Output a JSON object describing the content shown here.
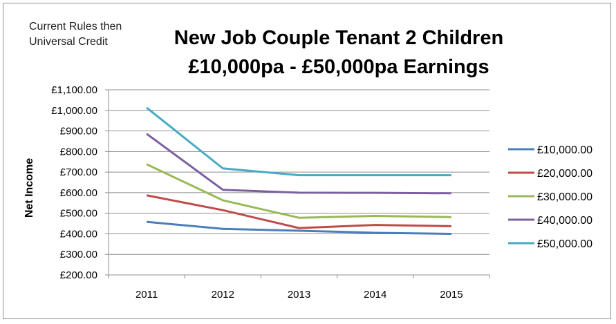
{
  "chart_data": {
    "type": "line",
    "title": "New Job Couple Tenant 2 Children\n£10,000pa - £50,000pa Earnings",
    "subtitle": "Current Rules then\nUniversal Credit",
    "xlabel": "",
    "ylabel": "Net Income",
    "categories": [
      "2011",
      "2012",
      "2013",
      "2014",
      "2015"
    ],
    "ylim": [
      200,
      1100
    ],
    "yticks": [
      200,
      300,
      400,
      500,
      600,
      700,
      800,
      900,
      1000,
      1100
    ],
    "ytick_labels": [
      "£200.00",
      "£300.00",
      "£400.00",
      "£500.00",
      "£600.00",
      "£700.00",
      "£800.00",
      "£900.00",
      "£1,000.00",
      "£1,100.00"
    ],
    "grid": true,
    "legend_position": "right",
    "series": [
      {
        "name": "£10,000.00",
        "color": "#4a7ebb",
        "values": [
          458,
          424,
          415,
          405,
          400
        ]
      },
      {
        "name": "£20,000.00",
        "color": "#be4b48",
        "values": [
          587,
          515,
          428,
          443,
          437
        ]
      },
      {
        "name": "£30,000.00",
        "color": "#98b954",
        "values": [
          738,
          563,
          478,
          487,
          481
        ]
      },
      {
        "name": "£40,000.00",
        "color": "#7d5fa0",
        "values": [
          886,
          614,
          600,
          599,
          597
        ]
      },
      {
        "name": "£50,000.00",
        "color": "#46aac5",
        "values": [
          1013,
          718,
          685,
          685,
          685
        ]
      }
    ]
  }
}
